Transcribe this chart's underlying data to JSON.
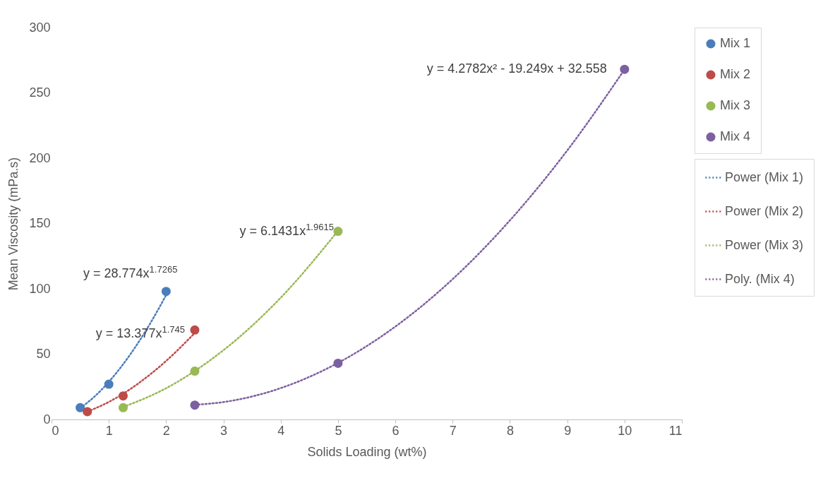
{
  "chart_data": {
    "type": "scatter",
    "xlabel": "Solids Loading (wt%)",
    "ylabel": "Mean Viscosity (mPa.s)",
    "xlim": [
      0,
      11
    ],
    "xticks": [
      0,
      1,
      2,
      3,
      4,
      5,
      6,
      7,
      8,
      9,
      10,
      11
    ],
    "ylim": [
      0,
      300
    ],
    "yticks": [
      0,
      50,
      100,
      150,
      200,
      250,
      300
    ],
    "grid": false,
    "legend": "right",
    "series": [
      {
        "name": "Mix 1",
        "color": "#4a7ebb",
        "marker": "circle",
        "x": [
          0.5,
          1,
          2
        ],
        "values": [
          9,
          27,
          98
        ]
      },
      {
        "name": "Mix 2",
        "color": "#be4b48",
        "marker": "circle",
        "x": [
          0.625,
          1.25,
          2.5
        ],
        "values": [
          6,
          18,
          68.5
        ]
      },
      {
        "name": "Mix 3",
        "color": "#98b954",
        "marker": "circle",
        "x": [
          1.25,
          2.5,
          5
        ],
        "values": [
          9,
          37,
          144
        ]
      },
      {
        "name": "Mix 4",
        "color": "#7d60a0",
        "marker": "circle",
        "x": [
          2.5,
          5,
          10
        ],
        "values": [
          11,
          43,
          268
        ]
      },
      {
        "type": "line",
        "name": "Power (Mix 1)",
        "color": "#4a7ebb",
        "line_style": "dotted",
        "x": [
          0.5,
          0.75,
          1,
          1.25,
          1.5,
          1.75,
          2
        ],
        "values": [
          8.7,
          17.5,
          28.8,
          42.3,
          57.9,
          75.6,
          95.2
        ]
      },
      {
        "type": "line",
        "name": "Power (Mix 2)",
        "color": "#be4b48",
        "line_style": "dotted",
        "x": [
          0.625,
          1,
          1.25,
          1.5,
          2,
          2.5
        ],
        "values": [
          5.9,
          13.4,
          19.7,
          27.1,
          44.8,
          66.2
        ]
      },
      {
        "type": "line",
        "name": "Power (Mix 3)",
        "color": "#98b954",
        "line_style": "dotted",
        "x": [
          1.25,
          2,
          2.5,
          3,
          4,
          5
        ],
        "values": [
          9.5,
          23.9,
          37.1,
          53,
          93.2,
          144.4
        ]
      },
      {
        "type": "line",
        "name": "Poly. (Mix 4)",
        "color": "#7d60a0",
        "line_style": "dotted",
        "x": [
          2.5,
          3,
          4,
          5,
          6,
          7,
          8,
          9,
          10
        ],
        "values": [
          11.2,
          13.3,
          24,
          43.3,
          71.1,
          107.4,
          152.4,
          205.9,
          267.9
        ]
      }
    ],
    "annotations": [
      {
        "text": "y = 28.774x$^{1.7265}$",
        "x": 2,
        "y": 98
      },
      {
        "text": "y = 13.377x$^{1.745}$",
        "x": 2.5,
        "y": 68.5
      },
      {
        "text": "y = 6.1431x$^{1.9615}$",
        "x": 5,
        "y": 144
      },
      {
        "text": "y = 4.2782x² - 19.249x + 32.558",
        "x": 10,
        "y": 268
      }
    ]
  }
}
